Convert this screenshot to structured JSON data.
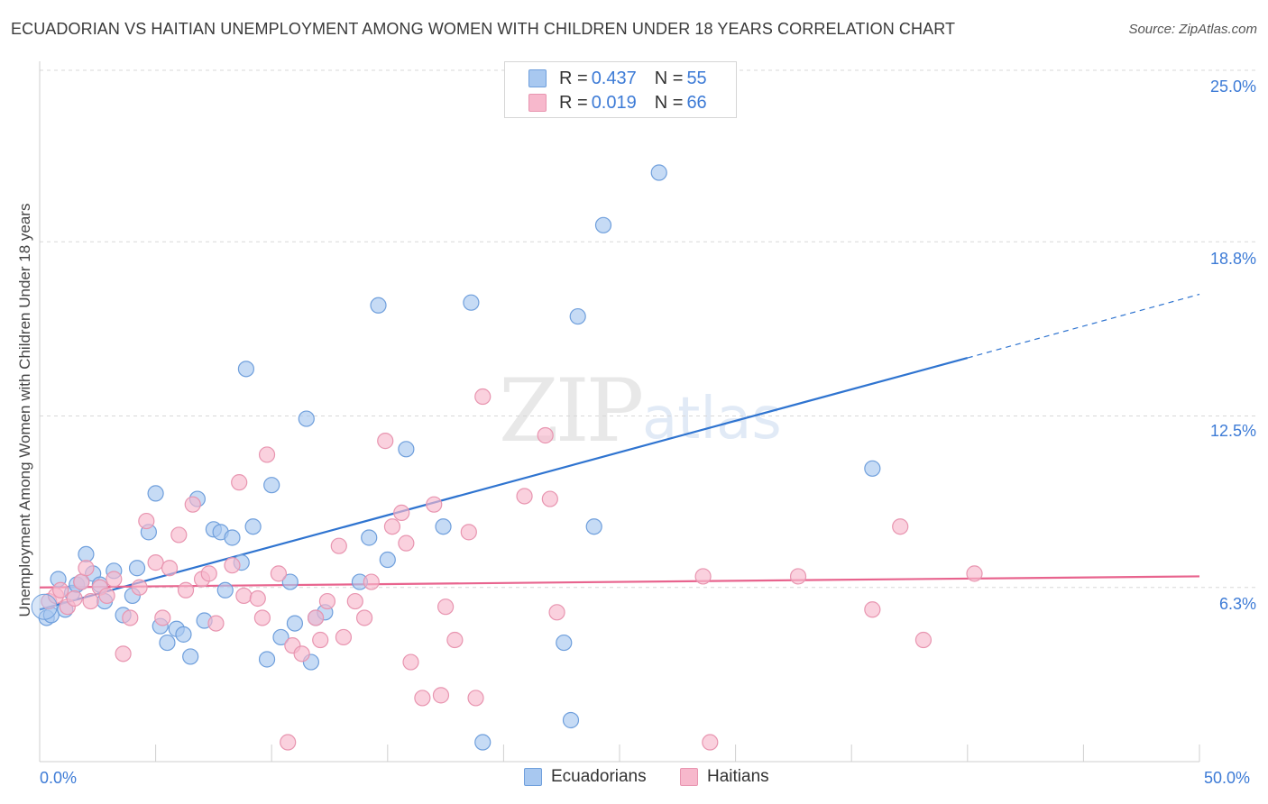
{
  "title": "ECUADORIAN VS HAITIAN UNEMPLOYMENT AMONG WOMEN WITH CHILDREN UNDER 18 YEARS CORRELATION CHART",
  "source": "Source: ZipAtlas.com",
  "watermark": {
    "zip": "ZIP",
    "atlas": "atlas"
  },
  "legend": {
    "rows": [
      {
        "r_label": "R =",
        "r_value": "0.437",
        "n_label": "N =",
        "n_value": "55",
        "color": "#a8c8f0"
      },
      {
        "r_label": "R =",
        "r_value": "0.019",
        "n_label": "N =",
        "n_value": "66",
        "color": "#f7b8cc"
      }
    ]
  },
  "bottom_legend": {
    "ecuadorians": "Ecuadorians",
    "haitians": "Haitians"
  },
  "colors": {
    "ecuadorian_fill": "#a8c8f0",
    "ecuadorian_stroke": "#6f9fdc",
    "ecuadorian_line": "#2f74d0",
    "haitian_fill": "#f7b8cc",
    "haitian_stroke": "#e895b0",
    "haitian_line": "#e8648e",
    "axis_text": "#3d7bd6",
    "grid": "#d8d8d8"
  },
  "chart_data": {
    "type": "scatter",
    "title": "ECUADORIAN VS HAITIAN UNEMPLOYMENT AMONG WOMEN WITH CHILDREN UNDER 18 YEARS CORRELATION CHART",
    "xlabel": "",
    "ylabel": "Unemployment Among Women with Children Under 18 years",
    "xlim": [
      0,
      50
    ],
    "ylim": [
      0,
      25
    ],
    "x_tick_labels": [
      "0.0%",
      "50.0%"
    ],
    "y_ticks": [
      6.3,
      12.5,
      18.8,
      25.0
    ],
    "y_tick_labels": [
      "6.3%",
      "12.5%",
      "18.8%",
      "25.0%"
    ],
    "grid": "horizontal dashed",
    "legend_position": "top-center",
    "series": [
      {
        "name": "Ecuadorians",
        "R": 0.437,
        "N": 55,
        "trend": {
          "x0": 0,
          "y0": 5.5,
          "x1": 40,
          "y1": 14.6,
          "dashed_to_x": 50,
          "dashed_to_y": 16.9
        },
        "points": [
          [
            0.3,
            5.2
          ],
          [
            0.5,
            5.3
          ],
          [
            0.8,
            6.6
          ],
          [
            1.1,
            5.5
          ],
          [
            1.4,
            6.1
          ],
          [
            1.6,
            6.4
          ],
          [
            1.8,
            6.5
          ],
          [
            2.0,
            7.5
          ],
          [
            2.3,
            6.8
          ],
          [
            2.6,
            6.4
          ],
          [
            2.8,
            5.8
          ],
          [
            3.2,
            6.9
          ],
          [
            3.6,
            5.3
          ],
          [
            4.0,
            6.0
          ],
          [
            4.2,
            7.0
          ],
          [
            4.7,
            8.3
          ],
          [
            5.0,
            9.7
          ],
          [
            5.2,
            4.9
          ],
          [
            5.5,
            4.3
          ],
          [
            5.9,
            4.8
          ],
          [
            6.2,
            4.6
          ],
          [
            6.5,
            3.8
          ],
          [
            6.8,
            9.5
          ],
          [
            7.1,
            5.1
          ],
          [
            7.5,
            8.4
          ],
          [
            7.8,
            8.3
          ],
          [
            8.0,
            6.2
          ],
          [
            8.3,
            8.1
          ],
          [
            8.7,
            7.2
          ],
          [
            8.9,
            14.2
          ],
          [
            9.2,
            8.5
          ],
          [
            9.8,
            3.7
          ],
          [
            10.0,
            10.0
          ],
          [
            10.4,
            4.5
          ],
          [
            10.8,
            6.5
          ],
          [
            11.0,
            5.0
          ],
          [
            11.5,
            12.4
          ],
          [
            11.7,
            3.6
          ],
          [
            11.9,
            5.2
          ],
          [
            12.3,
            5.4
          ],
          [
            13.8,
            6.5
          ],
          [
            14.2,
            8.1
          ],
          [
            14.6,
            16.5
          ],
          [
            15.0,
            7.3
          ],
          [
            15.8,
            11.3
          ],
          [
            17.4,
            8.5
          ],
          [
            18.6,
            16.6
          ],
          [
            19.1,
            0.7
          ],
          [
            22.6,
            4.3
          ],
          [
            22.9,
            1.5
          ],
          [
            23.2,
            16.1
          ],
          [
            23.9,
            8.5
          ],
          [
            24.3,
            19.4
          ],
          [
            26.7,
            21.3
          ],
          [
            35.9,
            10.6
          ]
        ]
      },
      {
        "name": "Haitians",
        "R": 0.019,
        "N": 66,
        "trend": {
          "x0": 0,
          "y0": 6.3,
          "x1": 50,
          "y1": 6.7
        },
        "points": [
          [
            0.4,
            5.8
          ],
          [
            0.7,
            6.0
          ],
          [
            0.9,
            6.2
          ],
          [
            1.2,
            5.6
          ],
          [
            1.5,
            5.9
          ],
          [
            1.8,
            6.5
          ],
          [
            2.0,
            7.0
          ],
          [
            2.2,
            5.8
          ],
          [
            2.6,
            6.3
          ],
          [
            2.9,
            6.0
          ],
          [
            3.2,
            6.6
          ],
          [
            3.6,
            3.9
          ],
          [
            3.9,
            5.2
          ],
          [
            4.3,
            6.3
          ],
          [
            4.6,
            8.7
          ],
          [
            5.0,
            7.2
          ],
          [
            5.3,
            5.2
          ],
          [
            5.6,
            7.0
          ],
          [
            6.0,
            8.2
          ],
          [
            6.3,
            6.2
          ],
          [
            6.6,
            9.3
          ],
          [
            7.0,
            6.6
          ],
          [
            7.3,
            6.8
          ],
          [
            7.6,
            5.0
          ],
          [
            8.3,
            7.1
          ],
          [
            8.6,
            10.1
          ],
          [
            8.8,
            6.0
          ],
          [
            9.4,
            5.9
          ],
          [
            9.6,
            5.2
          ],
          [
            9.8,
            11.1
          ],
          [
            10.3,
            6.8
          ],
          [
            10.7,
            0.7
          ],
          [
            10.9,
            4.2
          ],
          [
            11.3,
            3.9
          ],
          [
            11.9,
            5.2
          ],
          [
            12.1,
            4.4
          ],
          [
            12.4,
            5.8
          ],
          [
            12.9,
            7.8
          ],
          [
            13.1,
            4.5
          ],
          [
            13.6,
            5.8
          ],
          [
            14.0,
            5.2
          ],
          [
            14.3,
            6.5
          ],
          [
            14.9,
            11.6
          ],
          [
            15.2,
            8.5
          ],
          [
            15.6,
            9.0
          ],
          [
            15.8,
            7.9
          ],
          [
            16.0,
            3.6
          ],
          [
            16.5,
            2.3
          ],
          [
            17.0,
            9.3
          ],
          [
            17.3,
            2.4
          ],
          [
            17.5,
            5.6
          ],
          [
            17.9,
            4.4
          ],
          [
            18.5,
            8.3
          ],
          [
            18.8,
            2.3
          ],
          [
            19.1,
            13.2
          ],
          [
            20.9,
            9.6
          ],
          [
            21.8,
            11.8
          ],
          [
            22.0,
            9.5
          ],
          [
            22.3,
            5.4
          ],
          [
            28.6,
            6.7
          ],
          [
            28.9,
            0.7
          ],
          [
            32.7,
            6.7
          ],
          [
            35.9,
            5.5
          ],
          [
            37.1,
            8.5
          ],
          [
            38.1,
            4.4
          ],
          [
            40.3,
            6.8
          ]
        ]
      }
    ]
  }
}
